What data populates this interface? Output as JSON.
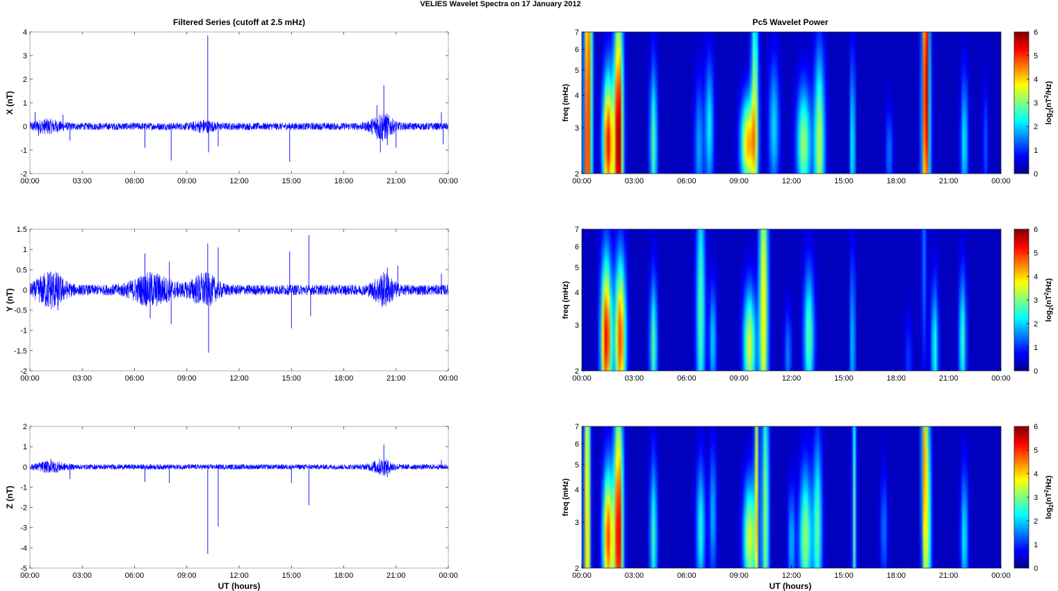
{
  "figure": {
    "suptitle": "VELIES Wavelet Spectra on 17 January   2012",
    "left_title": "Filtered Series (cutoff at 2.5 mHz)",
    "right_title": "Pc5 Wavelet Power",
    "xlabel": "UT (hours)",
    "colorbar_label_main": "log",
    "colorbar_label_sub": "2",
    "colorbar_label_paren": "(nT",
    "colorbar_label_sup": "2",
    "colorbar_label_end": "/Hz)"
  },
  "chart_data": [
    {
      "type": "line",
      "name": "X component filtered series",
      "ylabel": "X (nT)",
      "xlim": [
        0,
        24
      ],
      "ylim": [
        -2,
        4
      ],
      "yticks": [
        -2,
        -1,
        0,
        1,
        2,
        3,
        4
      ],
      "xticks": [
        "00:00",
        "03:00",
        "06:00",
        "09:00",
        "12:00",
        "15:00",
        "18:00",
        "21:00",
        "00:00"
      ],
      "noise_amp": 0.12,
      "spikes": [
        [
          0.3,
          0.6
        ],
        [
          0.5,
          -0.4
        ],
        [
          1.9,
          0.5
        ],
        [
          2.3,
          -0.6
        ],
        [
          6.6,
          -0.9
        ],
        [
          8.1,
          -1.45
        ],
        [
          10.2,
          3.85
        ],
        [
          10.25,
          -1.1
        ],
        [
          10.8,
          -0.85
        ],
        [
          14.9,
          -1.5
        ],
        [
          19.9,
          0.9
        ],
        [
          20.1,
          -1.1
        ],
        [
          20.3,
          1.75
        ],
        [
          20.5,
          -0.8
        ],
        [
          21.0,
          -0.9
        ],
        [
          23.6,
          0.6
        ],
        [
          23.7,
          -0.75
        ]
      ],
      "bursts": [
        [
          20.2,
          0.6,
          0.4
        ],
        [
          1.0,
          0.8,
          0.15
        ],
        [
          10.0,
          0.6,
          0.12
        ]
      ]
    },
    {
      "type": "line",
      "name": "Y component filtered series",
      "ylabel": "Y (nT)",
      "xlim": [
        0,
        24
      ],
      "ylim": [
        -2,
        1.5
      ],
      "yticks": [
        -2,
        -1.5,
        -1,
        -0.5,
        0,
        0.5,
        1,
        1.5
      ],
      "xticks": [
        "00:00",
        "03:00",
        "06:00",
        "09:00",
        "12:00",
        "15:00",
        "18:00",
        "21:00",
        "00:00"
      ],
      "noise_amp": 0.1,
      "spikes": [
        [
          1.2,
          0.45
        ],
        [
          1.6,
          -0.5
        ],
        [
          6.6,
          0.9
        ],
        [
          6.9,
          -0.7
        ],
        [
          8.0,
          0.7
        ],
        [
          8.1,
          -0.85
        ],
        [
          10.2,
          1.15
        ],
        [
          10.25,
          -1.55
        ],
        [
          10.8,
          1.05
        ],
        [
          14.9,
          0.95
        ],
        [
          15.0,
          -0.95
        ],
        [
          16.0,
          1.35
        ],
        [
          16.1,
          -0.65
        ],
        [
          20.5,
          0.55
        ],
        [
          21.1,
          0.6
        ],
        [
          23.6,
          0.4
        ]
      ],
      "bursts": [
        [
          1.2,
          0.8,
          0.3
        ],
        [
          7.0,
          1.2,
          0.25
        ],
        [
          10.0,
          0.8,
          0.25
        ],
        [
          20.3,
          0.6,
          0.25
        ]
      ]
    },
    {
      "type": "line",
      "name": "Z component filtered series",
      "ylabel": "Z (nT)",
      "xlim": [
        0,
        24
      ],
      "ylim": [
        -5,
        2
      ],
      "yticks": [
        -5,
        -4,
        -3,
        -2,
        -1,
        0,
        1,
        2
      ],
      "xticks": [
        "00:00",
        "03:00",
        "06:00",
        "09:00",
        "12:00",
        "15:00",
        "18:00",
        "21:00",
        "00:00"
      ],
      "noise_amp": 0.1,
      "spikes": [
        [
          1.2,
          0.4
        ],
        [
          2.3,
          -0.6
        ],
        [
          6.6,
          -0.75
        ],
        [
          8.0,
          -0.8
        ],
        [
          10.2,
          -4.3
        ],
        [
          10.8,
          -2.95
        ],
        [
          15.0,
          -0.8
        ],
        [
          16.0,
          -1.9
        ],
        [
          20.3,
          1.1
        ],
        [
          20.5,
          -0.5
        ],
        [
          23.6,
          0.35
        ]
      ],
      "bursts": [
        [
          20.2,
          0.6,
          0.25
        ],
        [
          1.2,
          0.8,
          0.15
        ]
      ]
    },
    {
      "type": "heatmap",
      "name": "X Pc5 wavelet power",
      "ylabel": "freq (mHz)",
      "xlim": [
        0,
        24
      ],
      "ylim": [
        2,
        7
      ],
      "yscale": "log",
      "yticks": [
        2,
        3,
        4,
        5,
        6,
        7
      ],
      "xticks": [
        "00:00",
        "03:00",
        "06:00",
        "09:00",
        "12:00",
        "15:00",
        "18:00",
        "21:00",
        "00:00"
      ],
      "clim": [
        0,
        6
      ],
      "colorbar_ticks": [
        0,
        1,
        2,
        3,
        4,
        5,
        6
      ],
      "blobs": [
        [
          0.3,
          2.2,
          5.0,
          0.18,
          0.6,
          2.5
        ],
        [
          0.5,
          6.5,
          2.0,
          0.15,
          0.2,
          2.0
        ],
        [
          1.5,
          2.6,
          5.2,
          0.3,
          0.35,
          0.6
        ],
        [
          2.1,
          2.6,
          6.0,
          0.25,
          0.4,
          1.2
        ],
        [
          4.1,
          2.6,
          2.6,
          0.2,
          0.3,
          0.7
        ],
        [
          6.7,
          2.5,
          1.5,
          0.25,
          0.2,
          0.6
        ],
        [
          7.3,
          3.0,
          2.0,
          0.25,
          0.35,
          0.6
        ],
        [
          9.5,
          2.6,
          4.0,
          0.4,
          0.4,
          0.4
        ],
        [
          9.9,
          3.6,
          3.0,
          0.2,
          0.4,
          1.2
        ],
        [
          11.0,
          3.0,
          1.8,
          0.3,
          0.4,
          0.6
        ],
        [
          12.7,
          2.6,
          3.0,
          0.4,
          0.4,
          0.5
        ],
        [
          13.6,
          2.6,
          3.2,
          0.3,
          0.4,
          0.8
        ],
        [
          15.5,
          2.5,
          2.2,
          0.15,
          0.35,
          0.8
        ],
        [
          17.6,
          2.4,
          1.2,
          0.2,
          0.25,
          0.4
        ],
        [
          19.7,
          2.6,
          3.0,
          0.25,
          0.3,
          1.5
        ],
        [
          19.7,
          6.5,
          3.8,
          0.15,
          0.25,
          1.5
        ],
        [
          21.9,
          2.6,
          2.0,
          0.2,
          0.3,
          0.6
        ],
        [
          23.1,
          2.6,
          1.0,
          0.15,
          0.2,
          0.5
        ]
      ]
    },
    {
      "type": "heatmap",
      "name": "Y Pc5 wavelet power",
      "ylabel": "freq (mHz)",
      "xlim": [
        0,
        24
      ],
      "ylim": [
        2,
        7
      ],
      "yscale": "log",
      "yticks": [
        2,
        3,
        4,
        5,
        6,
        7
      ],
      "xticks": [
        "00:00",
        "03:00",
        "06:00",
        "09:00",
        "12:00",
        "15:00",
        "18:00",
        "21:00",
        "00:00"
      ],
      "clim": [
        0,
        6
      ],
      "colorbar_ticks": [
        0,
        1,
        2,
        3,
        4,
        5,
        6
      ],
      "blobs": [
        [
          1.4,
          2.65,
          5.3,
          0.3,
          0.35,
          0.7
        ],
        [
          2.2,
          2.65,
          4.8,
          0.3,
          0.35,
          0.7
        ],
        [
          4.1,
          2.5,
          2.6,
          0.2,
          0.3,
          0.6
        ],
        [
          6.8,
          3.4,
          2.6,
          0.25,
          0.4,
          1.2
        ],
        [
          7.5,
          2.6,
          1.8,
          0.2,
          0.3,
          0.5
        ],
        [
          9.6,
          2.5,
          3.4,
          0.35,
          0.35,
          0.5
        ],
        [
          10.4,
          3.5,
          3.8,
          0.25,
          0.35,
          1.5
        ],
        [
          11.8,
          2.3,
          1.3,
          0.2,
          0.25,
          0.4
        ],
        [
          13.0,
          2.7,
          2.6,
          0.3,
          0.35,
          0.6
        ],
        [
          15.5,
          2.5,
          1.8,
          0.15,
          0.3,
          0.8
        ],
        [
          19.6,
          5.5,
          1.2,
          0.15,
          0.4,
          1.0
        ],
        [
          20.2,
          2.4,
          2.2,
          0.2,
          0.3,
          0.6
        ],
        [
          21.8,
          2.6,
          2.4,
          0.2,
          0.3,
          0.6
        ],
        [
          18.7,
          2.2,
          0.8,
          0.2,
          0.2,
          0.4
        ]
      ]
    },
    {
      "type": "heatmap",
      "name": "Z Pc5 wavelet power",
      "ylabel": "freq (mHz)",
      "xlim": [
        0,
        24
      ],
      "ylim": [
        2,
        7
      ],
      "yscale": "log",
      "yticks": [
        2,
        3,
        4,
        5,
        6,
        7
      ],
      "xticks": [
        "00:00",
        "03:00",
        "06:00",
        "09:00",
        "12:00",
        "15:00",
        "18:00",
        "21:00",
        "00:00"
      ],
      "clim": [
        0,
        6
      ],
      "colorbar_ticks": [
        0,
        1,
        2,
        3,
        4,
        5,
        6
      ],
      "blobs": [
        [
          0.3,
          2.3,
          4.2,
          0.18,
          0.6,
          2.5
        ],
        [
          1.5,
          2.6,
          4.8,
          0.3,
          0.35,
          0.6
        ],
        [
          2.1,
          2.65,
          5.5,
          0.25,
          0.4,
          1.2
        ],
        [
          4.1,
          2.6,
          2.4,
          0.2,
          0.3,
          0.7
        ],
        [
          6.8,
          2.8,
          2.2,
          0.25,
          0.35,
          0.6
        ],
        [
          7.5,
          3.2,
          1.6,
          0.2,
          0.35,
          0.6
        ],
        [
          9.6,
          2.6,
          3.4,
          0.35,
          0.4,
          0.5
        ],
        [
          10.0,
          5.0,
          3.2,
          0.12,
          0.6,
          2.0
        ],
        [
          10.5,
          3.0,
          3.0,
          0.2,
          0.5,
          1.5
        ],
        [
          12.0,
          2.5,
          1.6,
          0.2,
          0.3,
          0.5
        ],
        [
          12.8,
          2.6,
          3.0,
          0.35,
          0.35,
          0.6
        ],
        [
          13.5,
          2.8,
          2.6,
          0.25,
          0.35,
          0.8
        ],
        [
          15.6,
          3.0,
          2.5,
          0.12,
          0.6,
          1.8
        ],
        [
          19.6,
          6.5,
          3.4,
          0.15,
          0.25,
          1.5
        ],
        [
          19.8,
          2.9,
          2.8,
          0.2,
          0.5,
          1.2
        ],
        [
          21.9,
          2.6,
          2.0,
          0.2,
          0.3,
          0.6
        ],
        [
          17.3,
          2.8,
          1.2,
          0.2,
          0.25,
          0.5
        ]
      ]
    }
  ]
}
